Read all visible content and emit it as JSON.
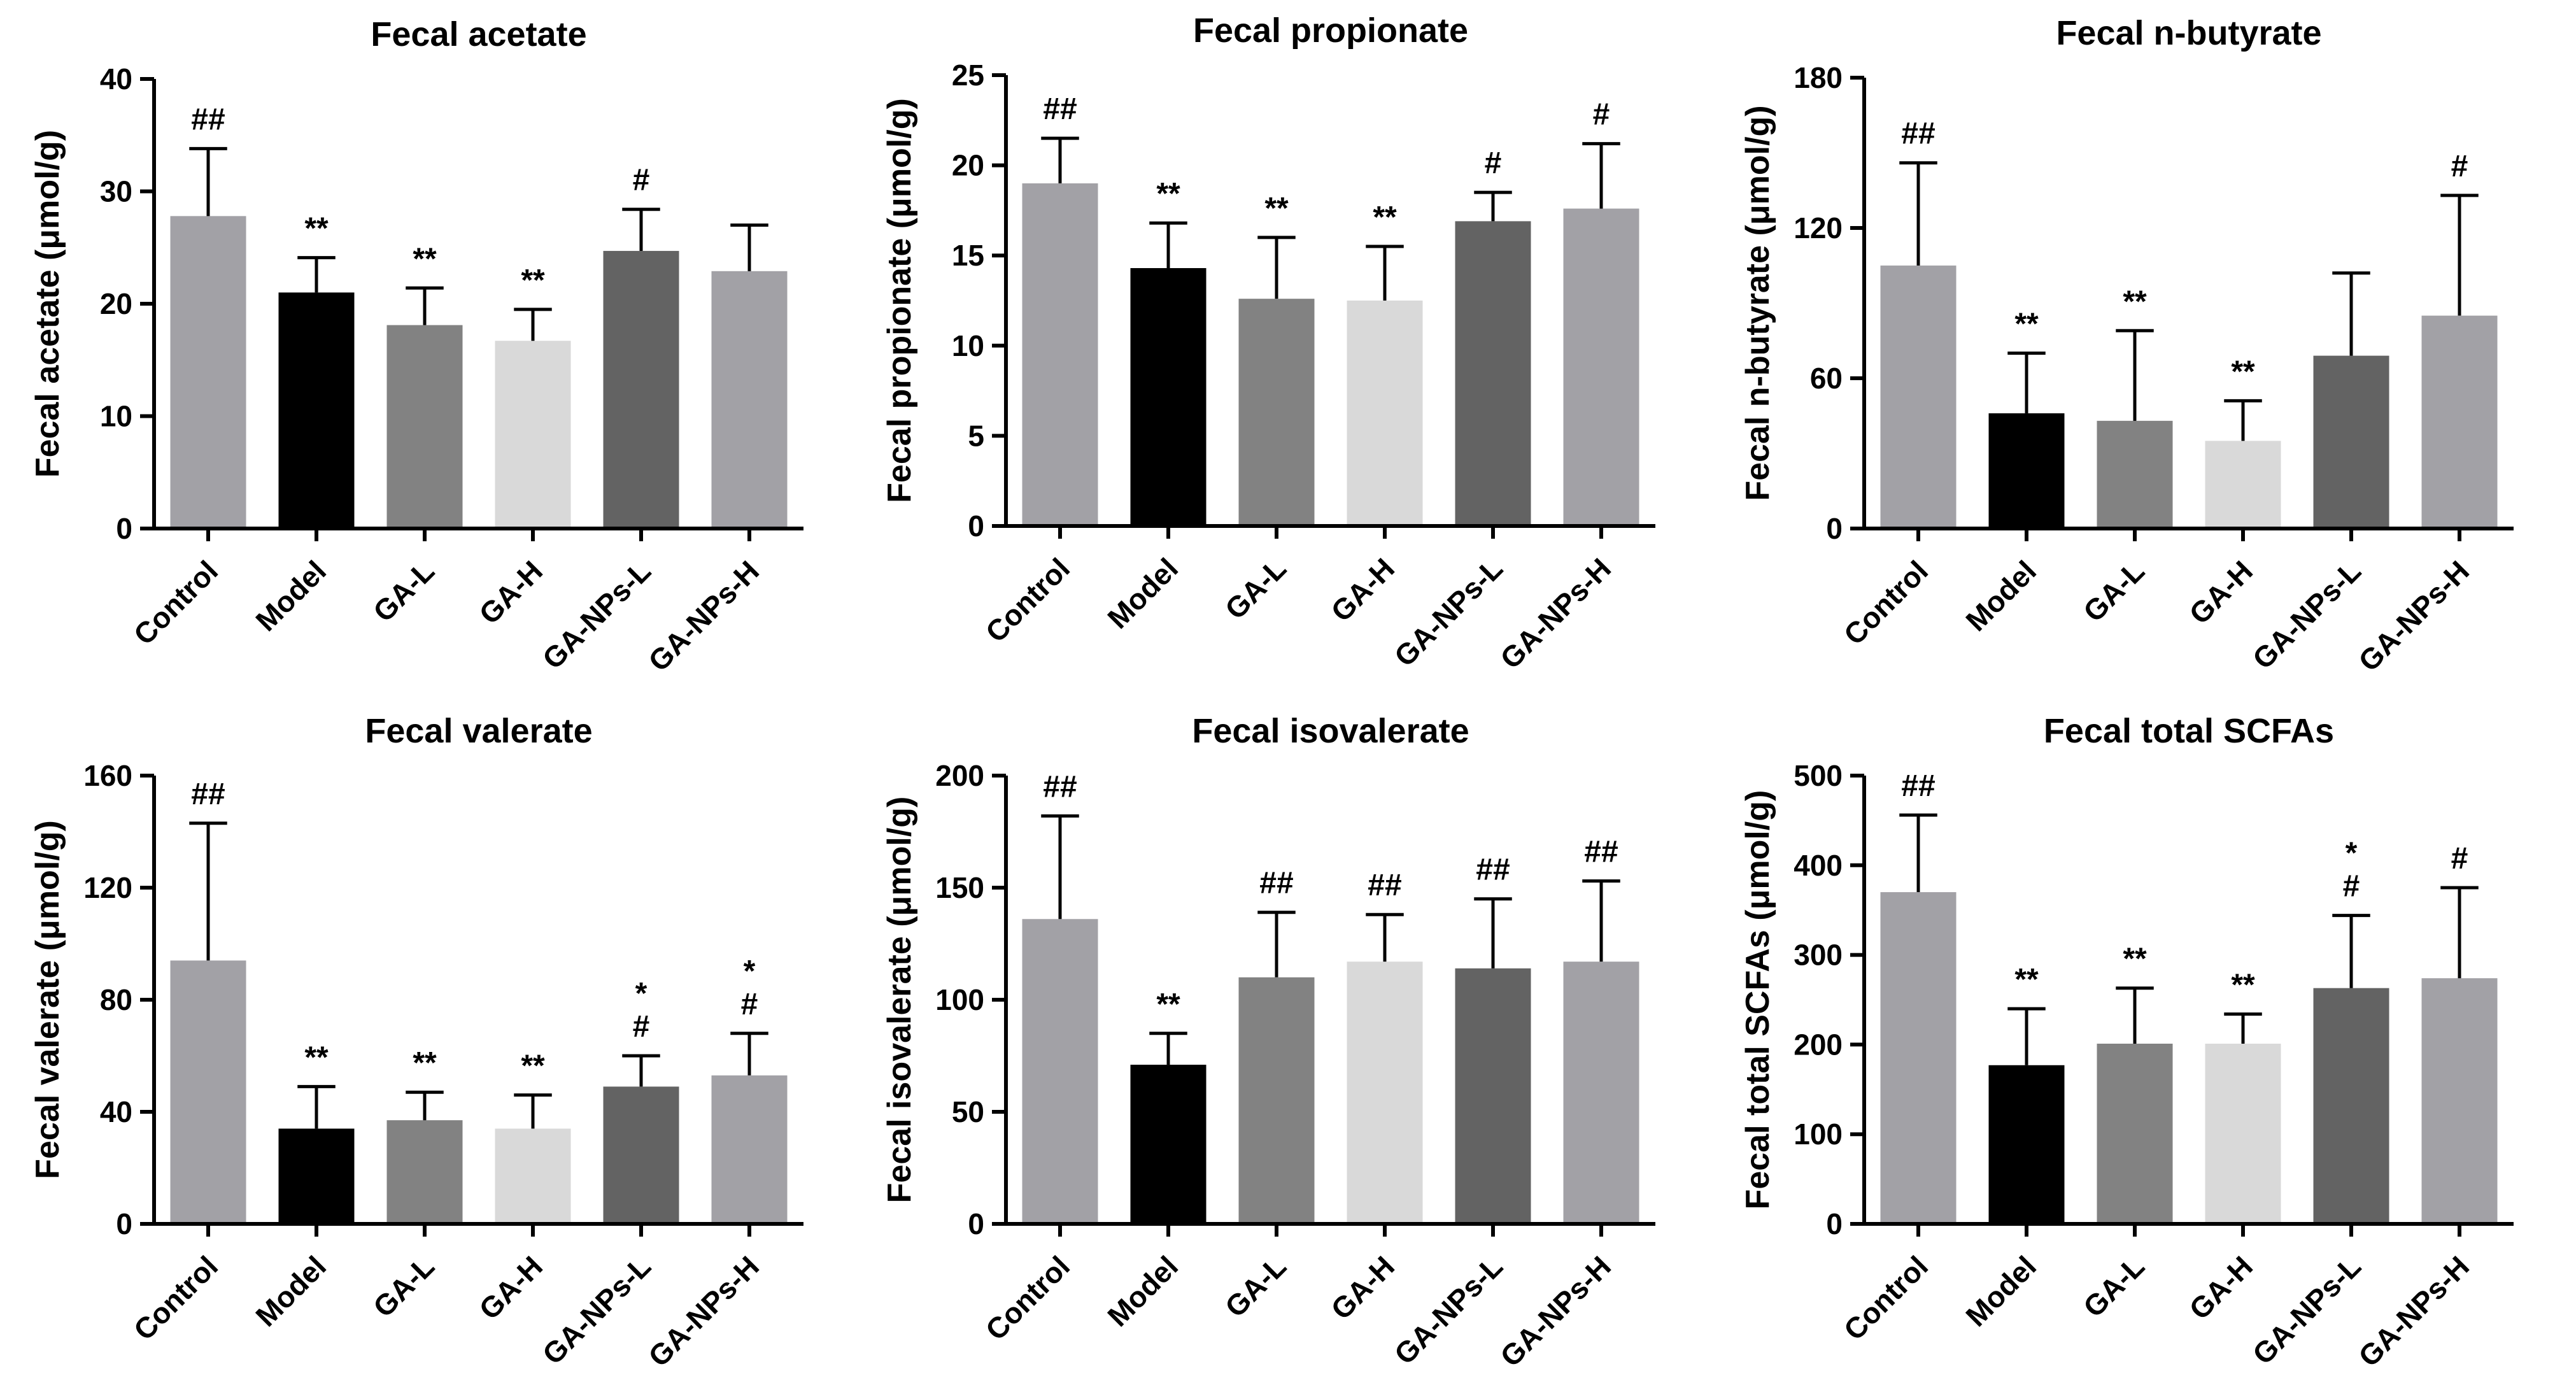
{
  "chart_data": [
    {
      "type": "bar",
      "title": "Fecal acetate",
      "ylabel": "Fecal acetate (μmol/g)",
      "categories": [
        "Control",
        "Model",
        "GA-L",
        "GA-H",
        "GA-NPs-L",
        "GA-NPs-H"
      ],
      "values": [
        27.8,
        21.0,
        18.1,
        16.7,
        24.7,
        22.9
      ],
      "errors": [
        6.0,
        3.1,
        3.3,
        2.8,
        3.7,
        4.1
      ],
      "annotations": [
        [
          "##"
        ],
        [
          "**"
        ],
        [
          "**"
        ],
        [
          "**"
        ],
        [
          "#"
        ],
        []
      ],
      "ylim": [
        0,
        40
      ],
      "yticks": [
        0,
        10,
        20,
        30,
        40
      ]
    },
    {
      "type": "bar",
      "title": "Fecal propionate",
      "ylabel": "Fecal propionate (μmol/g)",
      "categories": [
        "Control",
        "Model",
        "GA-L",
        "GA-H",
        "GA-NPs-L",
        "GA-NPs-H"
      ],
      "values": [
        19.0,
        14.3,
        12.6,
        12.5,
        16.9,
        17.6
      ],
      "errors": [
        2.5,
        2.5,
        3.4,
        3.0,
        1.6,
        3.6
      ],
      "annotations": [
        [
          "##"
        ],
        [
          "**"
        ],
        [
          "**"
        ],
        [
          "**"
        ],
        [
          "#"
        ],
        [
          "#"
        ]
      ],
      "ylim": [
        0,
        25
      ],
      "yticks": [
        0,
        5,
        10,
        15,
        20,
        25
      ]
    },
    {
      "type": "bar",
      "title": "Fecal n-butyrate",
      "ylabel": "Fecal n-butyrate (μmol/g)",
      "categories": [
        "Control",
        "Model",
        "GA-L",
        "GA-H",
        "GA-NPs-L",
        "GA-NPs-H"
      ],
      "values": [
        105,
        46,
        43,
        35,
        69,
        85
      ],
      "errors": [
        41,
        24,
        36,
        16,
        33,
        48
      ],
      "annotations": [
        [
          "##"
        ],
        [
          "**"
        ],
        [
          "**"
        ],
        [
          "**"
        ],
        [],
        [
          "#"
        ]
      ],
      "ylim": [
        0,
        180
      ],
      "yticks": [
        0,
        60,
        120,
        180
      ]
    },
    {
      "type": "bar",
      "title": "Fecal valerate",
      "ylabel": "Fecal valerate (μmol/g)",
      "categories": [
        "Control",
        "Model",
        "GA-L",
        "GA-H",
        "GA-NPs-L",
        "GA-NPs-H"
      ],
      "values": [
        94,
        34,
        37,
        34,
        49,
        53
      ],
      "errors": [
        49,
        15,
        10,
        12,
        11,
        15
      ],
      "annotations": [
        [
          "##"
        ],
        [
          "**"
        ],
        [
          "**"
        ],
        [
          "**"
        ],
        [
          "#",
          "*"
        ],
        [
          "#",
          "*"
        ]
      ],
      "ylim": [
        0,
        160
      ],
      "yticks": [
        0,
        40,
        80,
        120,
        160
      ]
    },
    {
      "type": "bar",
      "title": "Fecal isovalerate",
      "ylabel": "Fecal isovalerate (μmol/g)",
      "categories": [
        "Control",
        "Model",
        "GA-L",
        "GA-H",
        "GA-NPs-L",
        "GA-NPs-H"
      ],
      "values": [
        136,
        71,
        110,
        117,
        114,
        117
      ],
      "errors": [
        46,
        14,
        29,
        21,
        31,
        36
      ],
      "annotations": [
        [
          "##"
        ],
        [
          "**"
        ],
        [
          "##"
        ],
        [
          "##"
        ],
        [
          "##"
        ],
        [
          "##"
        ]
      ],
      "ylim": [
        0,
        200
      ],
      "yticks": [
        0,
        50,
        100,
        150,
        200
      ]
    },
    {
      "type": "bar",
      "title": "Fecal total SCFAs",
      "ylabel": "Fecal total SCFAs (μmol/g)",
      "categories": [
        "Control",
        "Model",
        "GA-L",
        "GA-H",
        "GA-NPs-L",
        "GA-NPs-H"
      ],
      "values": [
        370,
        177,
        201,
        201,
        263,
        274
      ],
      "errors": [
        86,
        63,
        62,
        33,
        81,
        101
      ],
      "annotations": [
        [
          "##"
        ],
        [
          "**"
        ],
        [
          "**"
        ],
        [
          "**"
        ],
        [
          "#",
          "*"
        ],
        [
          "#"
        ]
      ],
      "ylim": [
        0,
        500
      ],
      "yticks": [
        0,
        100,
        200,
        300,
        400,
        500
      ]
    }
  ],
  "colors": {
    "bars": [
      "#a2a1a6",
      "#000000",
      "#828282",
      "#d9d9d9",
      "#636363",
      "#a2a1a6"
    ],
    "axis": "#000000"
  }
}
